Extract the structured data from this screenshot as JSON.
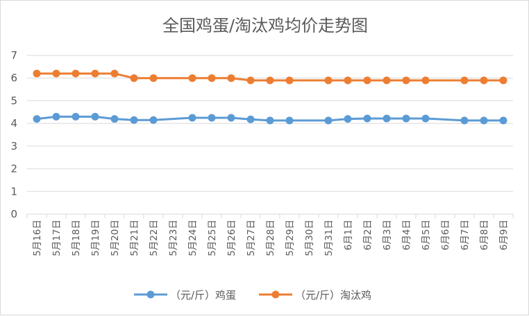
{
  "chart_data": {
    "type": "line",
    "title": "全国鸡蛋/淘汰鸡均价走势图",
    "xlabel": "",
    "ylabel": "",
    "ylim": [
      0,
      7
    ],
    "yticks": [
      0,
      1,
      2,
      3,
      4,
      5,
      6,
      7
    ],
    "grid": true,
    "legend": "bottom",
    "categories": [
      "5月16日",
      "5月17日",
      "5月18日",
      "5月19日",
      "5月20日",
      "5月21日",
      "5月22日",
      "5月23日",
      "5月24日",
      "5月25日",
      "5月26日",
      "5月27日",
      "5月28日",
      "5月29日",
      "5月30日",
      "5月31日",
      "6月1日",
      "6月2日",
      "6月3日",
      "6月4日",
      "6月5日",
      "6月6日",
      "6月7日",
      "6月8日",
      "6月9日"
    ],
    "series": [
      {
        "name": "（元/斤）鸡蛋",
        "color": "#5b9bd5",
        "values": [
          4.2,
          4.3,
          4.3,
          4.3,
          4.2,
          4.15,
          4.15,
          null,
          4.25,
          4.25,
          4.25,
          4.18,
          4.13,
          4.13,
          null,
          4.13,
          4.2,
          4.22,
          4.22,
          4.22,
          4.22,
          null,
          4.13,
          4.13,
          4.13
        ]
      },
      {
        "name": "（元/斤）淘汰鸡",
        "color": "#ed7d31",
        "values": [
          6.2,
          6.2,
          6.2,
          6.2,
          6.2,
          6.0,
          6.0,
          null,
          6.0,
          6.0,
          6.0,
          5.9,
          5.9,
          5.9,
          null,
          5.9,
          5.9,
          5.9,
          5.9,
          5.9,
          5.9,
          null,
          5.9,
          5.9,
          5.9
        ]
      }
    ]
  }
}
